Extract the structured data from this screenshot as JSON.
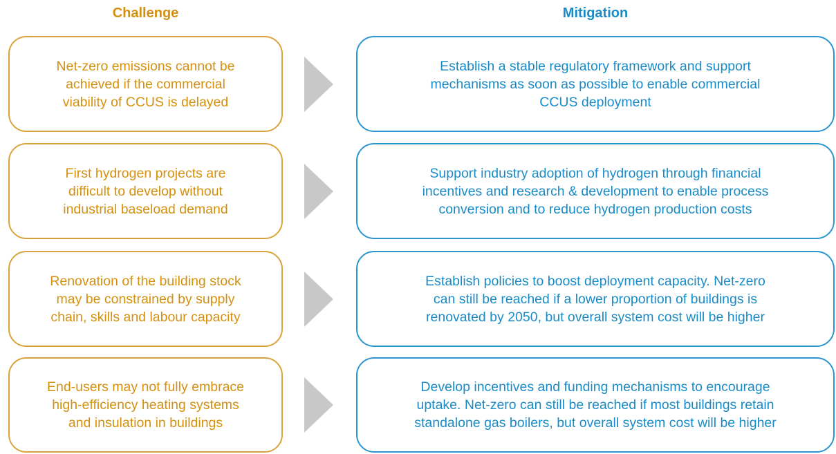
{
  "headers": {
    "challenge": "Challenge",
    "mitigation": "Mitigation"
  },
  "rows": [
    {
      "challenge": [
        "Net-zero emissions cannot be",
        "achieved if the commercial",
        "viability of CCUS is delayed"
      ],
      "mitigation": [
        "Establish a stable regulatory framework and support",
        "mechanisms as soon as possible to enable commercial",
        "CCUS deployment"
      ]
    },
    {
      "challenge": [
        "First hydrogen projects are",
        "difficult to develop without",
        "industrial baseload demand"
      ],
      "mitigation": [
        "Support industry adoption of hydrogen through financial",
        "incentives and research & development to enable process",
        "conversion and to reduce hydrogen production costs"
      ]
    },
    {
      "challenge": [
        "Renovation of the building stock",
        "may be constrained by supply",
        "chain, skills and labour capacity"
      ],
      "mitigation": [
        "Establish policies to boost deployment capacity. Net-zero",
        "can still be reached if a lower proportion of buildings is",
        "renovated by 2050, but overall system cost will be higher"
      ]
    },
    {
      "challenge": [
        "End-users may not fully embrace",
        "high-efficiency heating systems",
        "and insulation in buildings"
      ],
      "mitigation": [
        "Develop incentives and funding mechanisms to encourage",
        "uptake. Net-zero can still be reached if most buildings retain",
        "standalone gas boilers, but overall system cost will be higher"
      ]
    }
  ]
}
